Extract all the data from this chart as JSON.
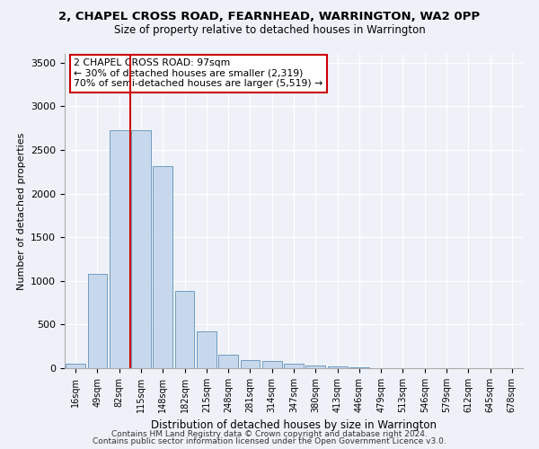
{
  "title_line1": "2, CHAPEL CROSS ROAD, FEARNHEAD, WARRINGTON, WA2 0PP",
  "title_line2": "Size of property relative to detached houses in Warrington",
  "xlabel": "Distribution of detached houses by size in Warrington",
  "ylabel": "Number of detached properties",
  "footnote1": "Contains HM Land Registry data © Crown copyright and database right 2024.",
  "footnote2": "Contains public sector information licensed under the Open Government Licence v3.0.",
  "bar_labels": [
    "16sqm",
    "49sqm",
    "82sqm",
    "115sqm",
    "148sqm",
    "182sqm",
    "215sqm",
    "248sqm",
    "281sqm",
    "314sqm",
    "347sqm",
    "380sqm",
    "413sqm",
    "446sqm",
    "479sqm",
    "513sqm",
    "546sqm",
    "579sqm",
    "612sqm",
    "645sqm",
    "678sqm"
  ],
  "bar_values": [
    50,
    1080,
    2730,
    2730,
    2310,
    880,
    420,
    155,
    95,
    80,
    55,
    35,
    25,
    10,
    5,
    3,
    2,
    1,
    1,
    0,
    0
  ],
  "bar_color": "#c8d8ec",
  "bar_edgecolor": "#6090b8",
  "ylim": [
    0,
    3600
  ],
  "yticks": [
    0,
    500,
    1000,
    1500,
    2000,
    2500,
    3000,
    3500
  ],
  "vline_x": 2.5,
  "vline_color": "#cc0000",
  "annotation_title": "2 CHAPEL CROSS ROAD: 97sqm",
  "annotation_line1": "← 30% of detached houses are smaller (2,319)",
  "annotation_line2": "70% of semi-detached houses are larger (5,519) →",
  "bg_color": "#eef2f8",
  "plot_bg_color": "#eef2f8",
  "grid_color": "#ffffff"
}
